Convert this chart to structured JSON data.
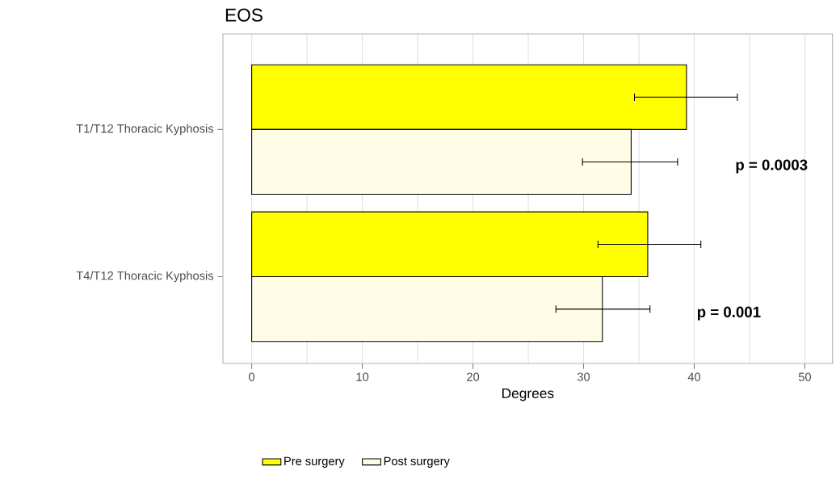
{
  "chart_data": {
    "type": "bar",
    "orientation": "horizontal",
    "title": "EOS",
    "xlabel": "Degrees",
    "categories": [
      "T1/T12 Thoracic Kyphosis",
      "T4/T12 Thoracic Kyphosis"
    ],
    "series": [
      {
        "name": "Pre surgery",
        "color": "#ffff00",
        "values": [
          39.3,
          35.8
        ],
        "errors": [
          [
            34.6,
            43.9
          ],
          [
            31.3,
            40.6
          ]
        ]
      },
      {
        "name": "Post surgery",
        "color": "#fffde6",
        "values": [
          34.3,
          31.7
        ],
        "errors": [
          [
            29.9,
            38.5
          ],
          [
            27.5,
            36.0
          ]
        ]
      }
    ],
    "xlim": [
      -2.6,
      52.5
    ],
    "xticks": [
      0,
      10,
      20,
      30,
      40,
      50
    ],
    "grid": "x",
    "legend": "bottom",
    "annotations": [
      "p = 0.0003",
      "p = 0.001"
    ]
  }
}
